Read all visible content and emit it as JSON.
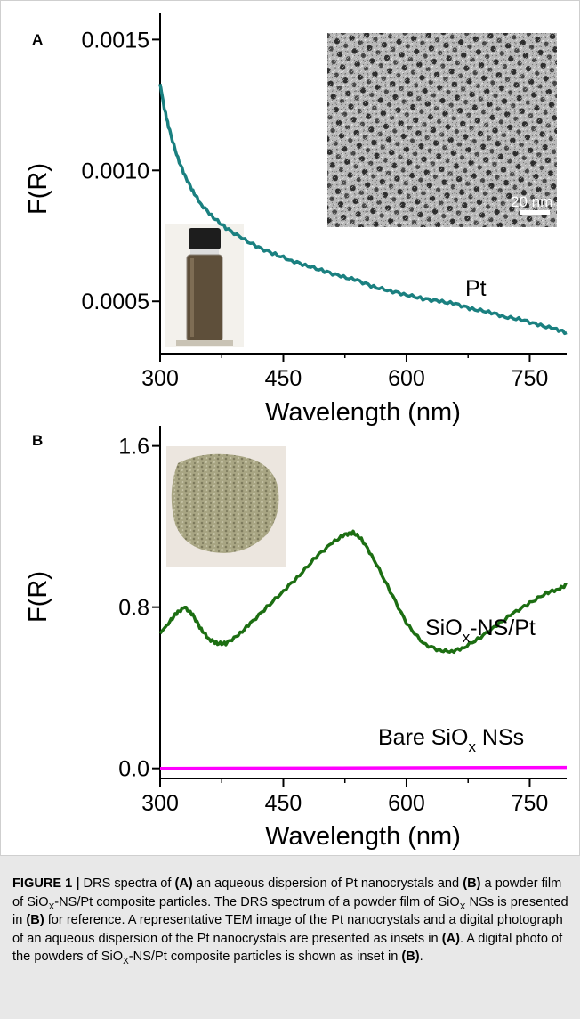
{
  "figure": {
    "panel_a_label": "A",
    "panel_b_label": "B",
    "tem_scale_label": "20 nm"
  },
  "chart_data": [
    {
      "type": "line",
      "panel": "A",
      "xlabel": "Wavelength (nm)",
      "ylabel": "F(R)",
      "xlim": [
        300,
        795
      ],
      "ylim": [
        0.0003,
        0.0016
      ],
      "x_ticks": [
        "300",
        "450",
        "600",
        "750"
      ],
      "y_ticks": [
        "0.0005",
        "0.0010",
        "0.0015"
      ],
      "y_tick_values": [
        0.0005,
        0.001,
        0.0015
      ],
      "color": "#1a8080",
      "series": [
        {
          "name": "Pt",
          "points": [
            [
              300,
              0.00133
            ],
            [
              305,
              0.00124
            ],
            [
              310,
              0.00117
            ],
            [
              320,
              0.00106
            ],
            [
              330,
              0.00098
            ],
            [
              340,
              0.00092
            ],
            [
              350,
              0.00087
            ],
            [
              365,
              0.00082
            ],
            [
              380,
              0.00078
            ],
            [
              400,
              0.00074
            ],
            [
              420,
              0.000705
            ],
            [
              440,
              0.00068
            ],
            [
              460,
              0.000655
            ],
            [
              480,
              0.000635
            ],
            [
              500,
              0.000615
            ],
            [
              520,
              0.000595
            ],
            [
              540,
              0.00058
            ],
            [
              560,
              0.000555
            ],
            [
              580,
              0.00054
            ],
            [
              600,
              0.000525
            ],
            [
              620,
              0.00051
            ],
            [
              640,
              0.0005
            ],
            [
              660,
              0.00049
            ],
            [
              680,
              0.00047
            ],
            [
              700,
              0.00046
            ],
            [
              720,
              0.00044
            ],
            [
              740,
              0.00043
            ],
            [
              760,
              0.00041
            ],
            [
              780,
              0.000395
            ],
            [
              795,
              0.00038
            ]
          ]
        }
      ]
    },
    {
      "type": "line",
      "panel": "B",
      "xlabel": "Wavelength (nm)",
      "ylabel": "F(R)",
      "xlim": [
        300,
        795
      ],
      "ylim": [
        -0.05,
        1.7
      ],
      "x_ticks": [
        "300",
        "450",
        "600",
        "750"
      ],
      "y_ticks": [
        "0.0",
        "0.8",
        "1.6"
      ],
      "y_tick_values": [
        0.0,
        0.8,
        1.6
      ],
      "series": [
        {
          "name": "SiOx-NS/Pt",
          "color": "#1c6e12",
          "points": [
            [
              300,
              0.67
            ],
            [
              310,
              0.72
            ],
            [
              320,
              0.77
            ],
            [
              330,
              0.8
            ],
            [
              340,
              0.76
            ],
            [
              350,
              0.69
            ],
            [
              360,
              0.64
            ],
            [
              370,
              0.62
            ],
            [
              380,
              0.62
            ],
            [
              395,
              0.66
            ],
            [
              410,
              0.72
            ],
            [
              430,
              0.8
            ],
            [
              450,
              0.88
            ],
            [
              470,
              0.96
            ],
            [
              490,
              1.05
            ],
            [
              510,
              1.12
            ],
            [
              525,
              1.16
            ],
            [
              535,
              1.17
            ],
            [
              545,
              1.14
            ],
            [
              560,
              1.04
            ],
            [
              580,
              0.88
            ],
            [
              600,
              0.72
            ],
            [
              620,
              0.62
            ],
            [
              640,
              0.585
            ],
            [
              655,
              0.58
            ],
            [
              670,
              0.6
            ],
            [
              690,
              0.65
            ],
            [
              710,
              0.71
            ],
            [
              730,
              0.77
            ],
            [
              750,
              0.82
            ],
            [
              770,
              0.87
            ],
            [
              785,
              0.89
            ],
            [
              795,
              0.91
            ]
          ]
        },
        {
          "name": "Bare SiOx NSs",
          "color": "#ff00ff",
          "points": [
            [
              300,
              0.0
            ],
            [
              795,
              0.005
            ]
          ]
        }
      ]
    }
  ],
  "caption": {
    "label": "FIGURE 1 |",
    "t1": " DRS spectra of ",
    "ref_a1": "(A)",
    "t2": " an aqueous dispersion of Pt nanocrystals and ",
    "ref_b1": "(B)",
    "t3": " a powder film of SiO",
    "t4": "-NS/Pt composite particles. The DRS spectrum of a powder film of SiO",
    "t5": " NSs is presented in ",
    "ref_b2": "(B)",
    "t6": " for reference. A representative TEM image of the Pt nanocrystals and a digital photograph of an aqueous dispersion of the Pt nanocrystals are presented as insets in ",
    "ref_a2": "(A)",
    "t7": ". A digital photo of the powders of SiO",
    "t8": "-NS/Pt composite particles is shown as inset in ",
    "ref_b3": "(B)",
    "t9": ".",
    "sub_x": "X"
  }
}
